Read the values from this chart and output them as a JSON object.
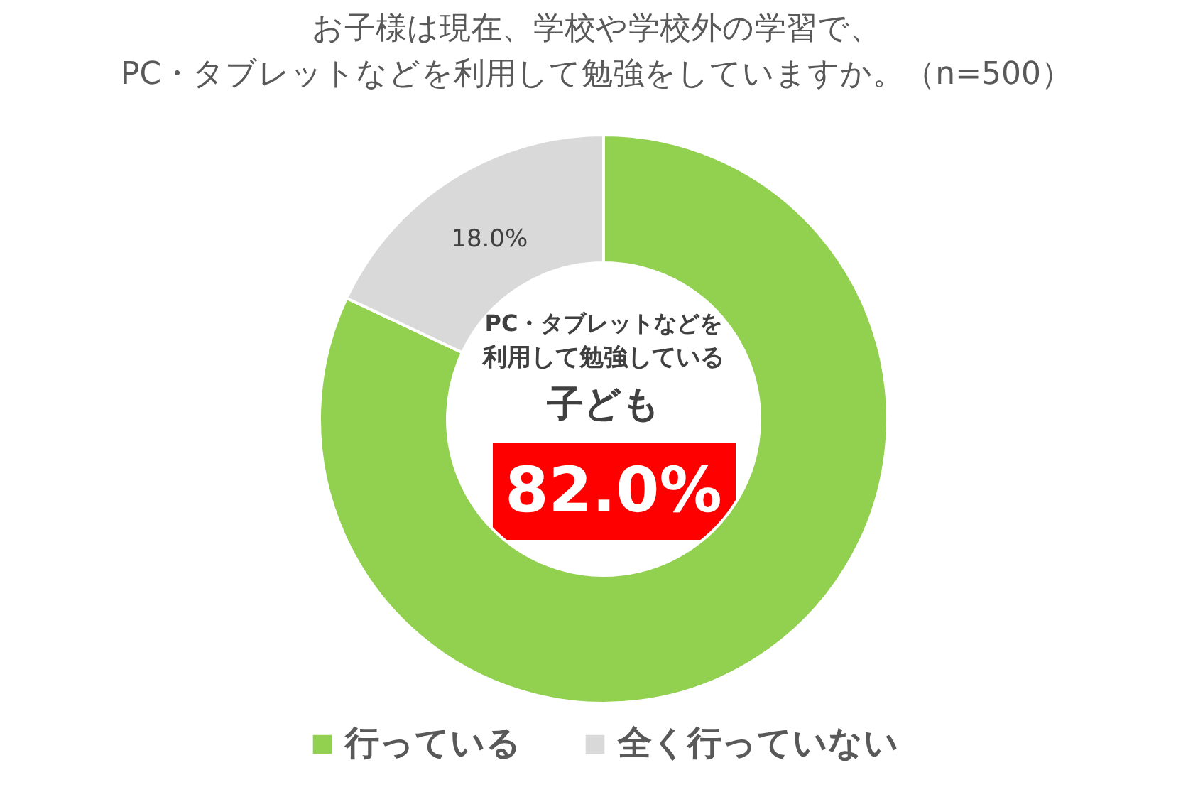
{
  "chart_data": {
    "type": "donut",
    "title": "お子様は現在、学校や学校外の学習で、\nPC・タブレットなどを利用して勉強をしていますか。（n=500）",
    "categories": [
      "行っている",
      "全く行っていない"
    ],
    "values": [
      82.0,
      18.0
    ],
    "colors": [
      "#92d050",
      "#d9d9d9"
    ],
    "value_labels": [
      "82.0%",
      "18.0%"
    ],
    "annotations": [
      "PC・タブレットなどを",
      "利用して勉強している",
      "子ども"
    ],
    "legend": "bottom"
  }
}
